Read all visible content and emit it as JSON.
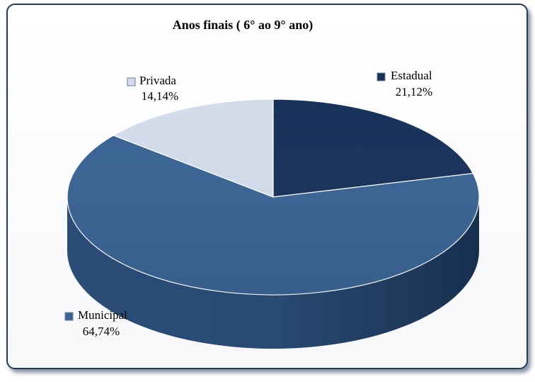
{
  "chart_data": {
    "type": "pie",
    "title": "Anos finais ( 6° ao 9° ano)",
    "slices": [
      {
        "label": "Estadual",
        "value": 21.12,
        "display": "21,12%",
        "color": "#17325a",
        "side": "#0e2240"
      },
      {
        "label": "Municipal",
        "value": 64.74,
        "display": "64,74%",
        "color": "#3a6494",
        "side": "#27496f"
      },
      {
        "label": "Privada",
        "value": 14.14,
        "display": "14,14%",
        "color": "#d2dcea",
        "side": "#a9b6c8"
      }
    ],
    "legend_placement": "labels next to slices",
    "style": "3d"
  }
}
